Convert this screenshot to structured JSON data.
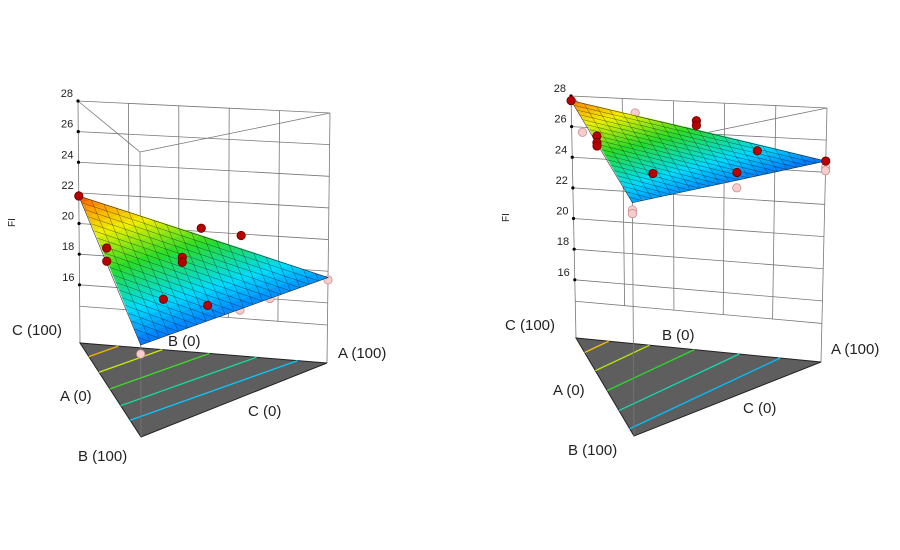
{
  "chart_data": [
    {
      "type": "surface",
      "title": "",
      "zlabel": "FI",
      "zticks": [
        16,
        18,
        20,
        22,
        24,
        26,
        28
      ],
      "zlim": [
        12.2,
        28
      ],
      "corner_labels": {
        "c_top": "C (100)",
        "b_top": "B (0)",
        "a_right": "A (100)",
        "a_left": "A (0)",
        "c_bottom": "C (0)",
        "b_bottom": "B (100)"
      },
      "surface_vertices": {
        "A": 17.6,
        "B": 17.3,
        "C": 21.8
      },
      "color_range": [
        17.0,
        22.0
      ],
      "contour_levels": [
        21.15,
        20.4,
        19.6,
        18.8,
        18.1
      ],
      "design_points": [
        {
          "a": 0,
          "b": 0,
          "c": 100,
          "z": 21.8,
          "position": "above"
        },
        {
          "a": 0,
          "b": 45,
          "c": 55,
          "z": 20.5,
          "position": "above"
        },
        {
          "a": 0,
          "b": 45,
          "c": 55,
          "z": 19.7,
          "position": "above"
        },
        {
          "a": 49,
          "b": 0,
          "c": 51,
          "z": 20.2,
          "position": "above"
        },
        {
          "a": 65,
          "b": 0,
          "c": 35,
          "z": 19.9,
          "position": "above"
        },
        {
          "a": 34,
          "b": 30,
          "c": 36,
          "z": 19.6,
          "position": "above"
        },
        {
          "a": 34,
          "b": 30,
          "c": 36,
          "z": 19.3,
          "position": "above"
        },
        {
          "a": 19,
          "b": 60,
          "c": 21,
          "z": 18.3,
          "position": "above"
        },
        {
          "a": 38,
          "b": 55,
          "c": 7,
          "z": 17.9,
          "position": "above"
        },
        {
          "a": 53,
          "b": 47,
          "c": 0,
          "z": 17.4,
          "position": "below"
        },
        {
          "a": 69,
          "b": 31,
          "c": 0,
          "z": 17.5,
          "position": "below"
        },
        {
          "a": 100,
          "b": 0,
          "c": 0,
          "z": 17.45,
          "position": "below"
        },
        {
          "a": 0,
          "b": 100,
          "c": 0,
          "z": 16.8,
          "position": "below"
        }
      ]
    },
    {
      "type": "surface",
      "title": "",
      "zlabel": "FI",
      "zticks": [
        16,
        18,
        20,
        22,
        24,
        26,
        28
      ],
      "zlim": [
        12.2,
        28
      ],
      "corner_labels": {
        "c_top": "C (100)",
        "b_top": "B (0)",
        "a_right": "A (100)",
        "a_left": "A (0)",
        "c_bottom": "C (0)",
        "b_bottom": "B (100)"
      },
      "surface_vertices": {
        "A": 24.7,
        "B": 25.0,
        "C": 27.7
      },
      "color_range": [
        24.5,
        28.0
      ],
      "contour_levels": [
        27.3,
        26.8,
        26.25,
        25.7,
        25.2
      ],
      "design_points": [
        {
          "a": 0,
          "b": 0,
          "c": 100,
          "z": 27.7,
          "position": "above"
        },
        {
          "a": 0,
          "b": 18,
          "c": 82,
          "z": 26.3,
          "position": "below"
        },
        {
          "a": 25,
          "b": 0,
          "c": 75,
          "z": 27.1,
          "position": "below"
        },
        {
          "a": 0,
          "b": 42,
          "c": 58,
          "z": 26.9,
          "position": "above"
        },
        {
          "a": 0,
          "b": 42,
          "c": 58,
          "z": 26.5,
          "position": "above"
        },
        {
          "a": 0,
          "b": 42,
          "c": 58,
          "z": 26.3,
          "position": "above"
        },
        {
          "a": 49,
          "b": 0,
          "c": 51,
          "z": 26.8,
          "position": "above"
        },
        {
          "a": 49,
          "b": 0,
          "c": 51,
          "z": 26.5,
          "position": "above"
        },
        {
          "a": 73,
          "b": 0,
          "c": 27,
          "z": 25.1,
          "position": "above"
        },
        {
          "a": 20,
          "b": 50,
          "c": 30,
          "z": 25.1,
          "position": "above"
        },
        {
          "a": 54,
          "b": 46,
          "c": 0,
          "z": 25.3,
          "position": "above"
        },
        {
          "a": 54,
          "b": 46,
          "c": 0,
          "z": 24.4,
          "position": "below"
        },
        {
          "a": 100,
          "b": 0,
          "c": 0,
          "z": 24.7,
          "position": "above"
        },
        {
          "a": 100,
          "b": 0,
          "c": 0,
          "z": 24.3,
          "position": "below"
        },
        {
          "a": 100,
          "b": 0,
          "c": 0,
          "z": 24.1,
          "position": "below"
        },
        {
          "a": 0,
          "b": 100,
          "c": 0,
          "z": 24.6,
          "position": "below"
        },
        {
          "a": 0,
          "b": 100,
          "c": 0,
          "z": 24.4,
          "position": "below"
        }
      ]
    }
  ]
}
